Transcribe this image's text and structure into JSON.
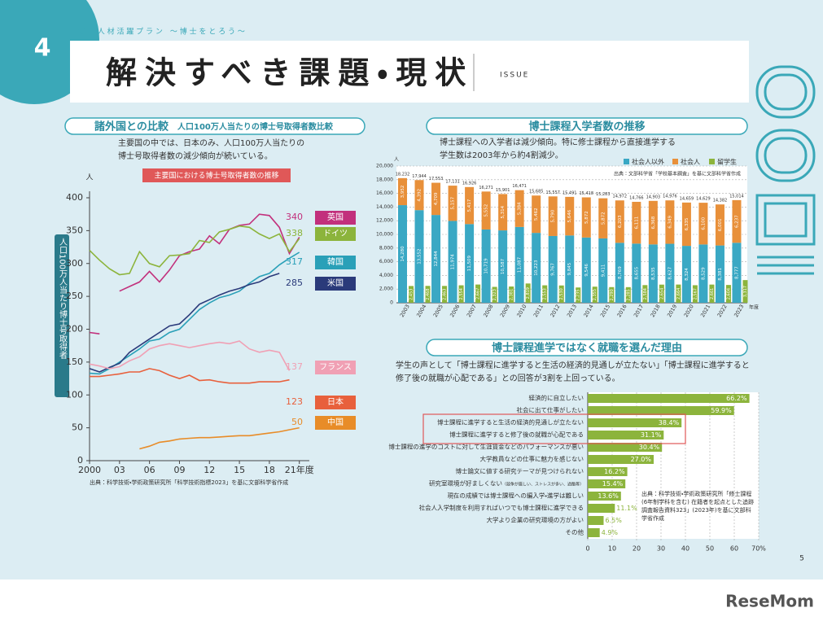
{
  "header": {
    "number": "4",
    "series": "博 士 人 材 活 躍 プ ラ ン　〜 博 士 を と ろ う 〜",
    "title": "解決すべき課題・現状",
    "label": "ISSUE"
  },
  "chart_data": [
    {
      "type": "line",
      "heading": "諸外国との比較",
      "subtitle": "人口100万人当たりの博士号取得者数比較",
      "description": [
        "主要国の中では、日本のみ、人口100万人当たりの",
        "博士号取得者数の減少傾向が続いている。"
      ],
      "title": "主要国における博士号取得者数の推移",
      "y_label": "人口100万人当たり博士号取得者",
      "y_unit": "人",
      "x": [
        2000,
        2001,
        2002,
        2003,
        2004,
        2005,
        2006,
        2007,
        2008,
        2009,
        2010,
        2011,
        2012,
        2013,
        2014,
        2015,
        2016,
        2017,
        2018,
        2019,
        2020,
        2021
      ],
      "xlim": [
        2000,
        2022
      ],
      "xticks": [
        2000,
        {
          "value": 2003,
          "label": "03"
        },
        {
          "value": 2006,
          "label": "06"
        },
        {
          "value": 2009,
          "label": "09"
        },
        {
          "value": 2012,
          "label": "12"
        },
        {
          "value": 2015,
          "label": "15"
        },
        {
          "value": 2018,
          "label": "18"
        },
        {
          "value": 2021,
          "label": "21年度"
        }
      ],
      "ylim": [
        0,
        400
      ],
      "yticks": [
        0,
        50,
        100,
        150,
        200,
        250,
        300,
        350,
        400
      ],
      "series": [
        {
          "name": "英国",
          "color": "#c2307c",
          "values": [
            195,
            193,
            null,
            258,
            265,
            272,
            288,
            272,
            290,
            312,
            318,
            322,
            342,
            330,
            352,
            358,
            360,
            375,
            373,
            355,
            315,
            340
          ]
        },
        {
          "name": "ドイツ",
          "color": "#8cb43c",
          "values": [
            320,
            305,
            292,
            283,
            285,
            318,
            300,
            295,
            312,
            313,
            315,
            335,
            332,
            348,
            352,
            357,
            355,
            345,
            338,
            345,
            318,
            338
          ]
        },
        {
          "name": "韓国",
          "color": "#2aa0b8",
          "values": [
            133,
            132,
            140,
            150,
            160,
            170,
            182,
            185,
            195,
            200,
            215,
            230,
            240,
            248,
            252,
            258,
            270,
            280,
            285,
            298,
            308,
            317
          ]
        },
        {
          "name": "米国",
          "color": "#2a3a7a",
          "values": [
            140,
            135,
            142,
            148,
            165,
            175,
            185,
            195,
            205,
            208,
            222,
            238,
            245,
            252,
            258,
            262,
            268,
            272,
            280,
            285,
            null,
            null
          ]
        },
        {
          "name": "フランス",
          "color": "#f0a0b4",
          "values": [
            147,
            144,
            140,
            143,
            152,
            158,
            170,
            175,
            178,
            175,
            172,
            175,
            178,
            180,
            178,
            182,
            170,
            165,
            168,
            165,
            137,
            null
          ]
        },
        {
          "name": "日本",
          "color": "#e8603c",
          "values": [
            128,
            128,
            130,
            132,
            135,
            135,
            140,
            137,
            130,
            125,
            130,
            122,
            123,
            120,
            118,
            118,
            118,
            120,
            120,
            120,
            123,
            null
          ]
        },
        {
          "name": "中国",
          "color": "#e88c28",
          "values": [
            null,
            null,
            null,
            null,
            null,
            18,
            22,
            28,
            30,
            33,
            34,
            35,
            35,
            36,
            37,
            38,
            38,
            40,
            42,
            44,
            47,
            50
          ]
        }
      ],
      "source": "出典：科学技術・学術政策研究所「科学技術指標2023」を基に文部科学省作成"
    },
    {
      "type": "bar",
      "heading": "博士課程入学者数の推移",
      "description": [
        "博士課程への入学者は減少傾向。特に修士課程から直接進学する",
        "学生数は2003年から約4割減少。"
      ],
      "y_unit": "人",
      "x_unit": "年度",
      "source": "出典：文部科学省「学校基本調査」を基に文部科学省作成",
      "categories": [
        "2003",
        "2004",
        "2005",
        "2006",
        "2007",
        "2008",
        "2009",
        "2010",
        "2011",
        "2012",
        "2013",
        "2014",
        "2015",
        "2016",
        "2017",
        "2018",
        "2019",
        "2020",
        "2021",
        "2022",
        "2023"
      ],
      "ylim": [
        0,
        20000
      ],
      "yticks": [
        0,
        {
          "value": 2000,
          "label": "2,000"
        },
        {
          "value": 4000,
          "label": "4,000"
        },
        {
          "value": 6000,
          "label": "6,000"
        },
        {
          "value": 8000,
          "label": "8,000"
        },
        {
          "value": 10000,
          "label": "10,000"
        },
        {
          "value": 12000,
          "label": "12,000"
        },
        {
          "value": 14000,
          "label": "14,000"
        },
        {
          "value": 16000,
          "label": "16,000"
        },
        {
          "value": 18000,
          "label": "18,000"
        },
        {
          "value": 20000,
          "label": "20,000"
        }
      ],
      "series": [
        {
          "name": "社会人以外",
          "color": "#3aa8c4",
          "stacked": true,
          "values": [
            14280,
            13552,
            12844,
            11974,
            11509,
            10719,
            10587,
            11087,
            10223,
            9767,
            9845,
            9546,
            9411,
            8769,
            8655,
            8535,
            8627,
            8324,
            8529,
            8381,
            8777
          ],
          "value_labels": [
            "14,280",
            "13,552",
            "12,844",
            "11,974",
            "11,509",
            "10,719",
            "10,587",
            "11,087",
            "10,223",
            "9,767",
            "9,845",
            "9,546",
            "9,411",
            "8,769",
            "8,655",
            "8,535",
            "8,627",
            "8,324",
            "8,529",
            "8,381",
            "8,777"
          ]
        },
        {
          "name": "社会人",
          "color": "#e8903a",
          "stacked": true,
          "values": [
            3952,
            4392,
            4709,
            5157,
            5417,
            5552,
            5314,
            5384,
            5462,
            5790,
            5646,
            5872,
            5872,
            6203,
            6111,
            6368,
            6349,
            6335,
            6100,
            6001,
            6237
          ],
          "value_labels": [
            "3,952",
            "4,392",
            "4,709",
            "5,157",
            "5,417",
            "5,552",
            "5,314",
            "5,384",
            "5,462",
            "5,790",
            "5,646",
            "5,872",
            "5,872",
            "6,203",
            "6,111",
            "6,368",
            "6,349",
            "6,335",
            "6,100",
            "6,001",
            "6,237"
          ]
        },
        {
          "name": "留学生",
          "color": "#8cb43c",
          "stacked": false,
          "values": [
            2453,
            2468,
            2463,
            2554,
            2667,
            2323,
            2381,
            2819,
            2553,
            2530,
            2235,
            2355,
            2290,
            2285,
            2584,
            2654,
            2664,
            2567,
            2661,
            2604,
            3317
          ],
          "value_labels": [
            "2,453",
            "2,468",
            "2,463",
            "2,554",
            "2,667",
            "2,323",
            "2,381",
            "2,819",
            "2,553",
            "2,530",
            "2,235",
            "2,355",
            "2,290",
            "2,285",
            "2,584",
            "2,654",
            "2,664",
            "2,567",
            "2,661",
            "2,604",
            "3,317"
          ]
        }
      ],
      "total_labels": [
        "18,232",
        "17,944",
        "17,553",
        "17,131",
        "16,926",
        "16,271",
        "15,901",
        "16,471",
        "15,685",
        "15,557",
        "15,491",
        "15,418",
        "15,283",
        "14,972",
        "14,766",
        "14,903",
        "14,976",
        "14,659",
        "14,629",
        "14,382",
        "15,014"
      ],
      "grid": true
    },
    {
      "type": "barh",
      "heading": "博士課程進学ではなく就職を選んだ理由",
      "description": [
        "学生の声として「博士課程に進学すると生活の経済的見通しが立たない」「博士課程に進学すると",
        "修了後の就職が心配である」との回答が3割を上回っている。"
      ],
      "categories": [
        "経済的に自立したい",
        "社会に出て仕事がしたい",
        "博士課程に進学すると生活の経済的見通しが立たない",
        "博士課程に進学すると修了後の就職が心配である",
        "博士課程の進学のコストに対して生涯賃金などのパフォーマンスが悪い",
        "大学教員などの仕事に魅力を感じない",
        "博士論文に値する研究テーマが見つけられない",
        "研究室環境が好ましくない",
        "現在の成績では博士課程への編入学・進学は難しい",
        "社会人入学制度を利用すればいつでも博士課程に進学できる",
        "大学より企業の研究環境の方がよい",
        "その他"
      ],
      "category_note": "（競争が厳しい、ストレスが多い、過酷等）",
      "values": [
        66.2,
        59.9,
        38.4,
        31.1,
        30.4,
        27.0,
        16.2,
        15.4,
        13.6,
        11.1,
        6.5,
        4.9
      ],
      "value_labels": [
        "66.2%",
        "59.9%",
        "38.4%",
        "31.1%",
        "30.4%",
        "27.0%",
        "16.2%",
        "15.4%",
        "13.6%",
        "11.1%",
        "6.5%",
        "4.9%"
      ],
      "color": "#8cb43c",
      "xlim": [
        0,
        70
      ],
      "xticks": [
        0,
        10,
        20,
        30,
        40,
        50,
        60,
        {
          "value": 70,
          "label": "70%"
        }
      ],
      "grid": true,
      "source": "出典：科学技術・学術政策研究所「修士課程(6年制学科を含む) 在籍者を起点とした追跡調査報告資料323」(2023年)を基に文部科学省作成"
    }
  ],
  "page_number": "5",
  "logo": "ReseMom"
}
